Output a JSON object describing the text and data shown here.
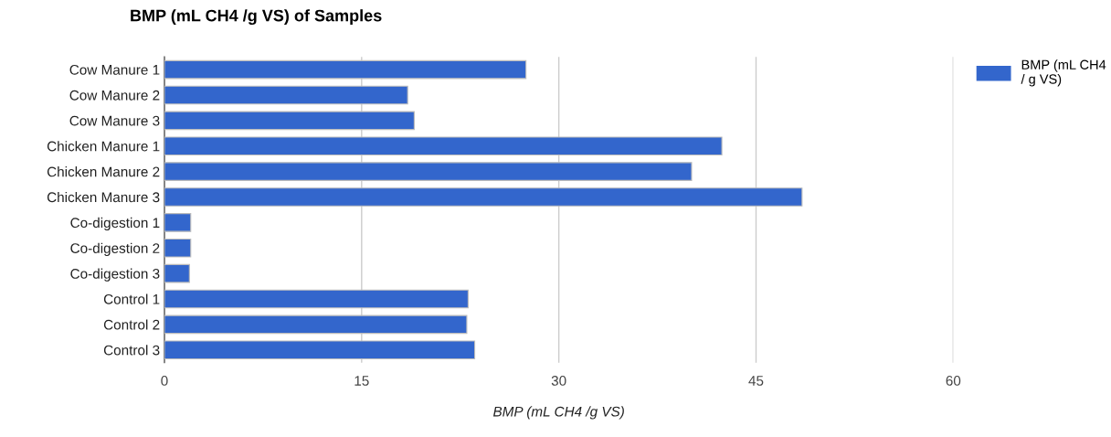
{
  "chart_data": {
    "type": "bar",
    "orientation": "horizontal",
    "title": "BMP (mL CH4 /g VS) of Samples",
    "xlabel": "BMP (mL CH4 /g VS)",
    "categories": [
      "Cow Manure 1",
      "Cow Manure 2",
      "Cow Manure 3",
      "Chicken Manure 1",
      "Chicken Manure 2",
      "Chicken Manure 3",
      "Co-digestion 1",
      "Co-digestion 2",
      "Co-digestion 3",
      "Control 1",
      "Control 2",
      "Control 3"
    ],
    "series": [
      {
        "name": "BMP (mL CH4 / g VS)",
        "color": "#3366cc",
        "values": [
          27.5,
          18.5,
          19.0,
          42.4,
          40.1,
          48.5,
          2.0,
          2.0,
          1.9,
          23.1,
          23.0,
          23.6
        ]
      }
    ],
    "xlim": [
      0,
      60
    ],
    "xticks": [
      0,
      15,
      30,
      45,
      60
    ],
    "grid": "x",
    "legend": "top right"
  }
}
